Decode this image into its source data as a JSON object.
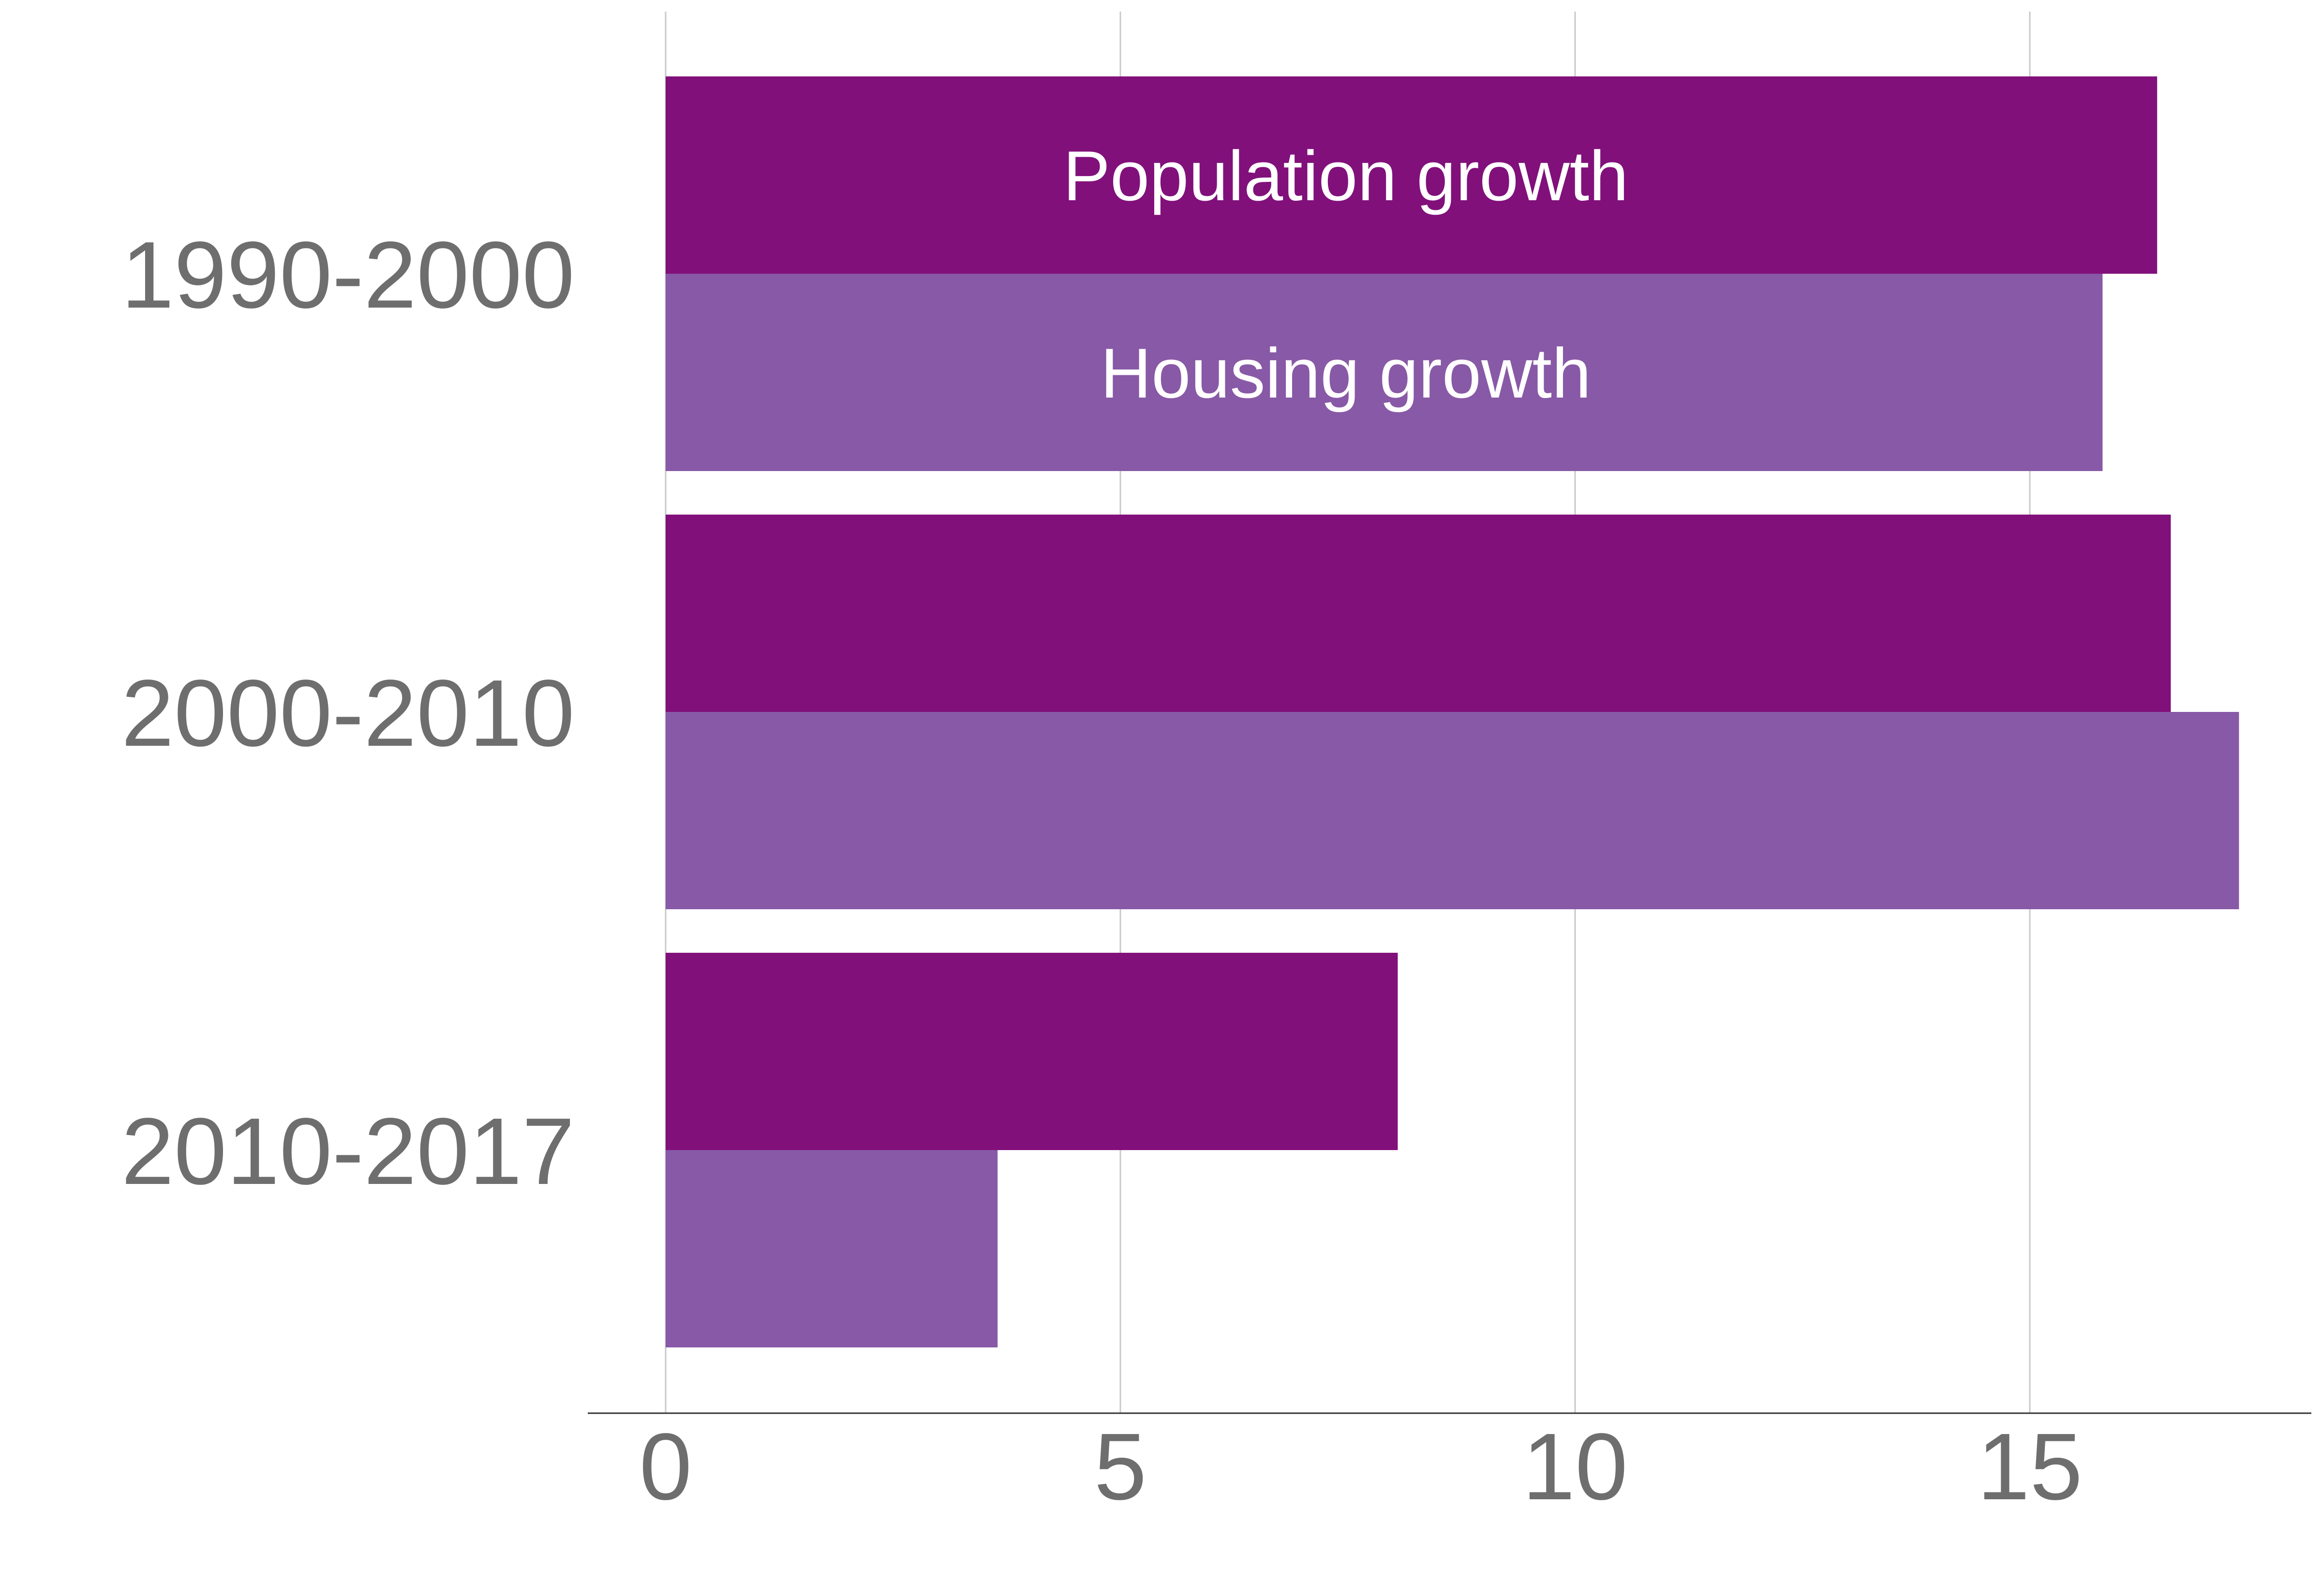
{
  "chart_data": {
    "type": "bar",
    "orientation": "horizontal",
    "categories": [
      "1990-2000",
      "2000-2010",
      "2010-2017"
    ],
    "series": [
      {
        "name": "Population growth",
        "values": [
          16.4,
          16.55,
          8.05
        ],
        "color": "#81107b"
      },
      {
        "name": "Housing growth",
        "values": [
          15.8,
          17.3,
          3.65
        ],
        "color": "#8859a6"
      }
    ],
    "xlim": [
      0,
      18
    ],
    "xticks": [
      0,
      5,
      10,
      15
    ],
    "xtick_labels": [
      "0",
      "5",
      "10",
      "15"
    ],
    "grid": true,
    "series_labels_inside_first_group": true,
    "title": "",
    "xlabel": "",
    "ylabel": ""
  }
}
